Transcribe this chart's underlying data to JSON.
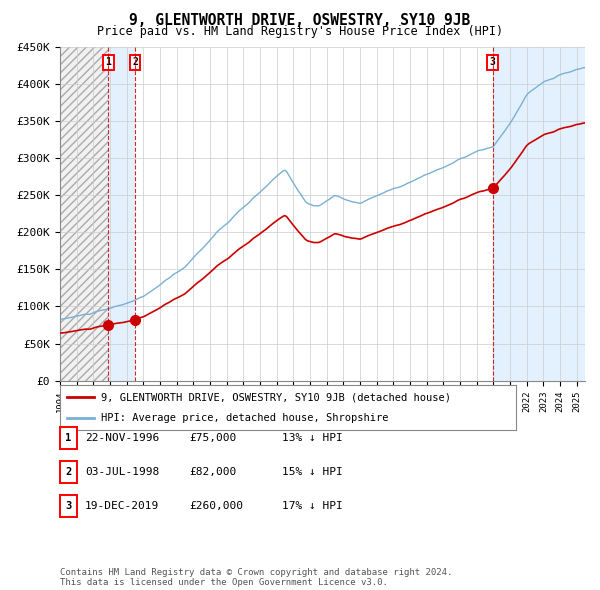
{
  "title": "9, GLENTWORTH DRIVE, OSWESTRY, SY10 9JB",
  "subtitle": "Price paid vs. HM Land Registry's House Price Index (HPI)",
  "ylabel_ticks": [
    "£0",
    "£50K",
    "£100K",
    "£150K",
    "£200K",
    "£250K",
    "£300K",
    "£350K",
    "£400K",
    "£450K"
  ],
  "ytick_values": [
    0,
    50000,
    100000,
    150000,
    200000,
    250000,
    300000,
    350000,
    400000,
    450000
  ],
  "xmin": 1994.0,
  "xmax": 2025.5,
  "ymin": 0,
  "ymax": 450000,
  "sales": [
    {
      "label": "1",
      "date": 1996.9,
      "price": 75000,
      "date_str": "22-NOV-1996",
      "price_str": "£75,000",
      "hpi_str": "13% ↓ HPI"
    },
    {
      "label": "2",
      "date": 1998.5,
      "price": 82000,
      "date_str": "03-JUL-1998",
      "price_str": "£82,000",
      "hpi_str": "15% ↓ HPI"
    },
    {
      "label": "3",
      "date": 2019.96,
      "price": 260000,
      "date_str": "19-DEC-2019",
      "price_str": "£260,000",
      "hpi_str": "17% ↓ HPI"
    }
  ],
  "legend_red_label": "9, GLENTWORTH DRIVE, OSWESTRY, SY10 9JB (detached house)",
  "legend_blue_label": "HPI: Average price, detached house, Shropshire",
  "footer": "Contains HM Land Registry data © Crown copyright and database right 2024.\nThis data is licensed under the Open Government Licence v3.0.",
  "grid_color": "#cccccc",
  "red_line_color": "#cc0000",
  "blue_line_color": "#7ab0d4",
  "background_color": "#ffffff",
  "sale_region_color": "#ddeeff",
  "hatch_region_color": "#e8e8e8"
}
